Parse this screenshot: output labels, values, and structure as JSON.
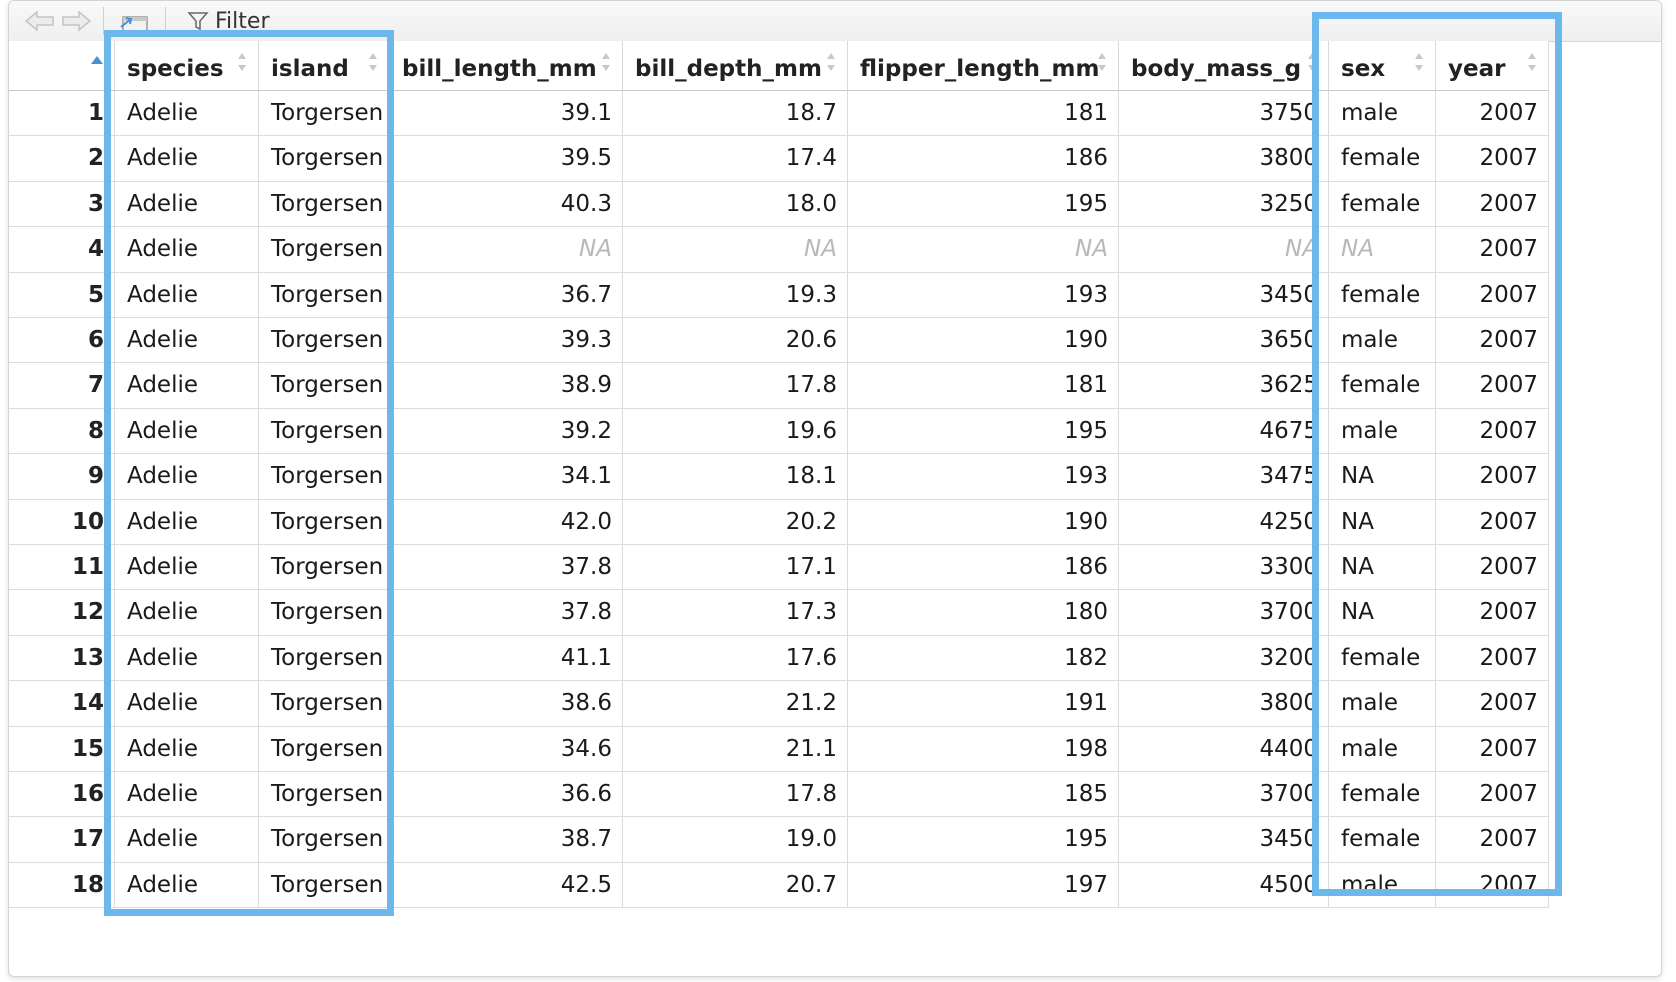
{
  "toolbar": {
    "back_icon": "arrow-left-icon",
    "forward_icon": "arrow-right-icon",
    "popout_icon": "popout-window-icon",
    "filter_icon": "funnel-icon",
    "filter_label": "Filter"
  },
  "table": {
    "columns": [
      "species",
      "island",
      "bill_length_mm",
      "bill_depth_mm",
      "flipper_length_mm",
      "body_mass_g",
      "sex",
      "year"
    ],
    "rows": [
      [
        "1",
        "Adelie",
        "Torgersen",
        "39.1",
        "18.7",
        "181",
        "3750",
        "male",
        "2007"
      ],
      [
        "2",
        "Adelie",
        "Torgersen",
        "39.5",
        "17.4",
        "186",
        "3800",
        "female",
        "2007"
      ],
      [
        "3",
        "Adelie",
        "Torgersen",
        "40.3",
        "18.0",
        "195",
        "3250",
        "female",
        "2007"
      ],
      [
        "4",
        "Adelie",
        "Torgersen",
        "NA",
        "NA",
        "NA",
        "NA",
        "NA",
        "2007"
      ],
      [
        "5",
        "Adelie",
        "Torgersen",
        "36.7",
        "19.3",
        "193",
        "3450",
        "female",
        "2007"
      ],
      [
        "6",
        "Adelie",
        "Torgersen",
        "39.3",
        "20.6",
        "190",
        "3650",
        "male",
        "2007"
      ],
      [
        "7",
        "Adelie",
        "Torgersen",
        "38.9",
        "17.8",
        "181",
        "3625",
        "female",
        "2007"
      ],
      [
        "8",
        "Adelie",
        "Torgersen",
        "39.2",
        "19.6",
        "195",
        "4675",
        "male",
        "2007"
      ],
      [
        "9",
        "Adelie",
        "Torgersen",
        "34.1",
        "18.1",
        "193",
        "3475",
        "NA",
        "2007"
      ],
      [
        "10",
        "Adelie",
        "Torgersen",
        "42.0",
        "20.2",
        "190",
        "4250",
        "NA",
        "2007"
      ],
      [
        "11",
        "Adelie",
        "Torgersen",
        "37.8",
        "17.1",
        "186",
        "3300",
        "NA",
        "2007"
      ],
      [
        "12",
        "Adelie",
        "Torgersen",
        "37.8",
        "17.3",
        "180",
        "3700",
        "NA",
        "2007"
      ],
      [
        "13",
        "Adelie",
        "Torgersen",
        "41.1",
        "17.6",
        "182",
        "3200",
        "female",
        "2007"
      ],
      [
        "14",
        "Adelie",
        "Torgersen",
        "38.6",
        "21.2",
        "191",
        "3800",
        "male",
        "2007"
      ],
      [
        "15",
        "Adelie",
        "Torgersen",
        "34.6",
        "21.1",
        "198",
        "4400",
        "male",
        "2007"
      ],
      [
        "16",
        "Adelie",
        "Torgersen",
        "36.6",
        "17.8",
        "185",
        "3700",
        "female",
        "2007"
      ],
      [
        "17",
        "Adelie",
        "Torgersen",
        "38.7",
        "19.0",
        "195",
        "3450",
        "female",
        "2007"
      ],
      [
        "18",
        "Adelie",
        "Torgersen",
        "42.5",
        "20.7",
        "197",
        "4500",
        "male",
        "2007"
      ]
    ],
    "na_italic_row": "4"
  },
  "colors": {
    "highlight": "#6cb8ec",
    "na_text": "#b8b8b8",
    "grid_line": "#dcdcdc"
  }
}
